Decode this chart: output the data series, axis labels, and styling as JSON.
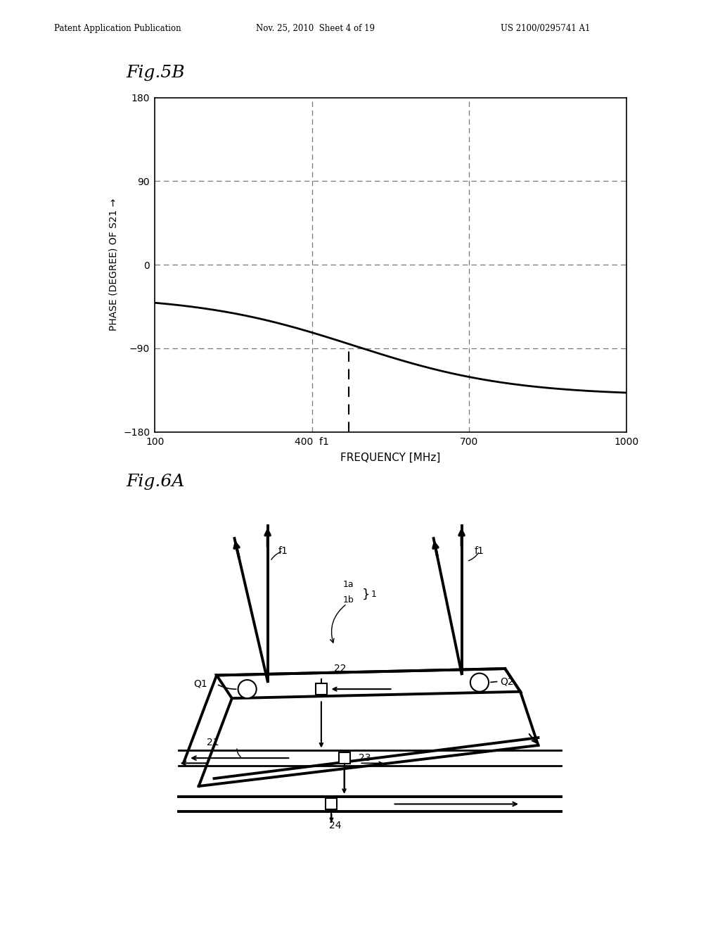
{
  "bg": "#ffffff",
  "black": "#000000",
  "gray": "#777777",
  "header1": "Patent Application Publication",
  "header2": "Nov. 25, 2010  Sheet 4 of 19",
  "header3": "US 2100/0295741 A1",
  "fig5b": "Fig.5B",
  "fig6a": "Fig.6A",
  "xlabel": "FREQUENCY [MHz]",
  "ylabel": "PHASE (DEGREE) OF S21 →",
  "xticks": [
    100,
    400,
    700,
    1000
  ],
  "yticks": [
    -180,
    -90,
    0,
    90,
    180
  ],
  "xlim": [
    100,
    1000
  ],
  "ylim": [
    -180,
    180
  ],
  "vgrid": [
    400,
    700
  ],
  "hgrid": [
    -90,
    0,
    90
  ],
  "f1_freq": 470,
  "curve_params": [
    480,
    300,
    54,
    3
  ]
}
